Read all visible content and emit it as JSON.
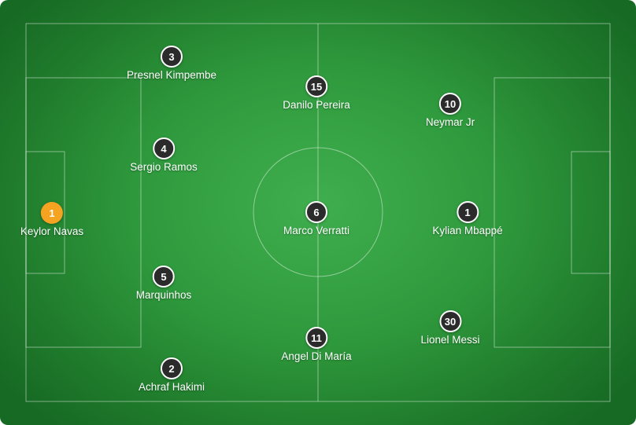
{
  "colors": {
    "pitch": "#2f9a3d",
    "line": "#ffffff",
    "badge": "#2b2b2b",
    "keeper_badge": "#f6a322"
  },
  "players": [
    {
      "number": "1",
      "name": "Keylor Navas",
      "keeper": true
    },
    {
      "number": "3",
      "name": "Presnel Kimpembe"
    },
    {
      "number": "4",
      "name": "Sergio Ramos"
    },
    {
      "number": "5",
      "name": "Marquinhos"
    },
    {
      "number": "2",
      "name": "Achraf Hakimi"
    },
    {
      "number": "15",
      "name": "Danilo Pereira"
    },
    {
      "number": "6",
      "name": "Marco Verratti"
    },
    {
      "number": "11",
      "name": "Angel Di María"
    },
    {
      "number": "10",
      "name": "Neymar Jr"
    },
    {
      "number": "1",
      "name": "Kylian Mbappé"
    },
    {
      "number": "30",
      "name": "Lionel Messi"
    }
  ]
}
